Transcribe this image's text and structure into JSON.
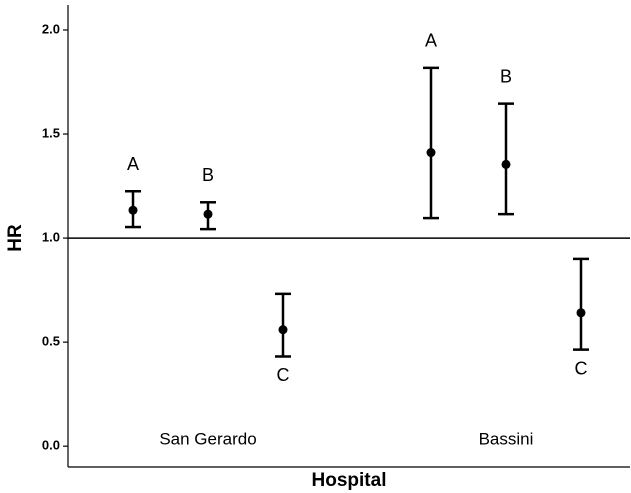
{
  "chart_data": {
    "type": "errorbar",
    "x_label": "Hospital",
    "y_label": "HR",
    "ylim": [
      -0.1,
      2.12
    ],
    "yticks": [
      {
        "value": 0,
        "label": "0.0"
      },
      {
        "value": 0.5,
        "label": "0.5"
      },
      {
        "value": 1,
        "label": "1.0"
      },
      {
        "value": 1.5,
        "label": "1.5"
      },
      {
        "value": 2,
        "label": "2.0"
      }
    ],
    "reference_line": 1,
    "color": "#000000",
    "groups": [
      {
        "name": "San Gerardo",
        "points": [
          {
            "label": "A",
            "value": 1.134,
            "lower": 1.053,
            "upper": 1.225
          },
          {
            "label": "B",
            "value": 1.115,
            "lower": 1.043,
            "upper": 1.172
          },
          {
            "label": "C",
            "value": 0.56,
            "lower": 0.431,
            "upper": 0.732
          }
        ]
      },
      {
        "name": "Bassini",
        "points": [
          {
            "label": "A",
            "value": 1.411,
            "lower": 1.096,
            "upper": 1.818
          },
          {
            "label": "B",
            "value": 1.354,
            "lower": 1.115,
            "upper": 1.646
          },
          {
            "label": "C",
            "value": 0.641,
            "lower": 0.464,
            "upper": 0.9
          }
        ]
      }
    ]
  }
}
